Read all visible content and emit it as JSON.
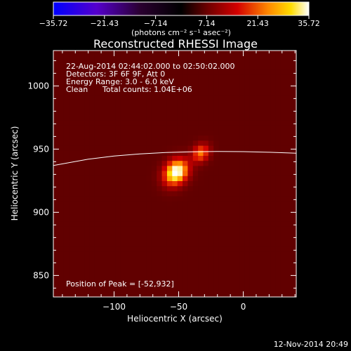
{
  "chart_data": {
    "type": "heatmap",
    "title": "Reconstructed RHESSI Image",
    "xlabel": "Heliocentric X (arcsec)",
    "ylabel": "Heliocentric Y (arcsec)",
    "xlim": [
      -147,
      41
    ],
    "ylim": [
      833,
      1028
    ],
    "x_ticks": [
      -100,
      -50,
      0
    ],
    "y_ticks": [
      850,
      900,
      950,
      1000
    ],
    "x_tick_labels": [
      "−100",
      "−50",
      "0"
    ],
    "y_tick_labels": [
      "850",
      "900",
      "950",
      "1000"
    ],
    "colorbar": {
      "range": [
        -35.72,
        35.72
      ],
      "tick_values": [
        -35.72,
        -21.43,
        -7.14,
        7.14,
        21.43,
        35.72
      ],
      "tick_labels": [
        "−35.72",
        "−21.43",
        "−7.14",
        "7.14",
        "21.43",
        "35.72"
      ],
      "unit_label": "(photons cm⁻² s⁻¹ asec⁻²)"
    },
    "sources": [
      {
        "x": -52,
        "y": 932,
        "peak": 35.72,
        "sigma_x": 5.5,
        "sigma_y": 7,
        "angle_deg": 35
      },
      {
        "x": -33,
        "y": 947,
        "peak": 18,
        "sigma_x": 4,
        "sigma_y": 5,
        "angle_deg": 35
      }
    ],
    "background_level": 3.5,
    "limb_curve": [
      [
        -147,
        937
      ],
      [
        -120,
        942
      ],
      [
        -100,
        944.5
      ],
      [
        -80,
        946.2
      ],
      [
        -60,
        947.3
      ],
      [
        -40,
        947.9
      ],
      [
        -20,
        948.1
      ],
      [
        0,
        948
      ],
      [
        20,
        947.5
      ],
      [
        41,
        946.8
      ]
    ],
    "annotations": {
      "time_range": "22-Aug-2014 02:44:02.000 to 02:50:02.000",
      "detectors": "Detectors: 3F 6F 9F, Att 0",
      "energy_range": "Energy Range: 3.0 - 6.0 keV",
      "algorithm": "Clean",
      "total_counts": "Total counts: 1.04E+06",
      "peak_position": "Position of Peak = [-52,932]"
    },
    "timestamp": "12-Nov-2014 20:49",
    "grid": false,
    "legend": "none"
  }
}
